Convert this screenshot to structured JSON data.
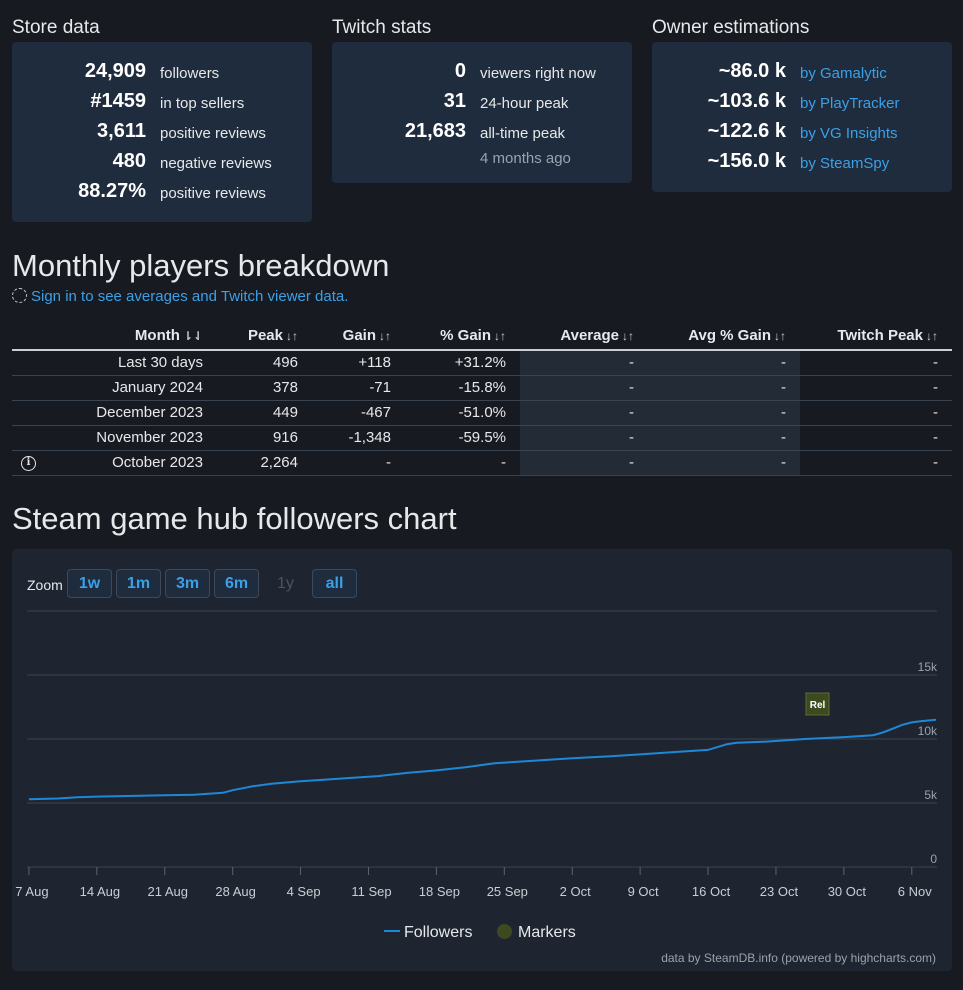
{
  "store": {
    "title": "Store data",
    "rows": [
      {
        "value": "24,909",
        "label": "followers"
      },
      {
        "value": "#1459",
        "label": "in top sellers"
      },
      {
        "value": "3,611",
        "label": "positive reviews"
      },
      {
        "value": "480",
        "label": "negative reviews"
      },
      {
        "value": "88.27%",
        "label": "positive reviews"
      }
    ]
  },
  "twitch": {
    "title": "Twitch stats",
    "rows": [
      {
        "value": "0",
        "label": "viewers right now"
      },
      {
        "value": "31",
        "label": "24-hour peak"
      },
      {
        "value": "21,683",
        "label": "all-time peak"
      }
    ],
    "alltime_when": "4 months ago"
  },
  "owners": {
    "title": "Owner estimations",
    "rows": [
      {
        "value": "~86.0 k",
        "label": "by Gamalytic"
      },
      {
        "value": "~103.6 k",
        "label": "by PlayTracker"
      },
      {
        "value": "~122.6 k",
        "label": "by VG Insights"
      },
      {
        "value": "~156.0 k",
        "label": "by SteamSpy"
      }
    ]
  },
  "monthly": {
    "title": "Monthly players breakdown",
    "signin_text": "Sign in to see averages and Twitch viewer data.",
    "columns": [
      "Month",
      "Peak",
      "Gain",
      "% Gain",
      "Average",
      "Avg % Gain",
      "Twitch Peak"
    ],
    "sort_icons": {
      "active": "⇂⇃",
      "inactive": "↓↑"
    },
    "rows": [
      {
        "month": "Last 30 days",
        "peak": "496",
        "gain": "+118",
        "pct": "+31.2%",
        "avg": "-",
        "avgpct": "-",
        "twitch": "-"
      },
      {
        "month": "January 2024",
        "peak": "378",
        "gain": "-71",
        "pct": "-15.8%",
        "avg": "-",
        "avgpct": "-",
        "twitch": "-"
      },
      {
        "month": "December 2023",
        "peak": "449",
        "gain": "-467",
        "pct": "-51.0%",
        "avg": "-",
        "avgpct": "-",
        "twitch": "-"
      },
      {
        "month": "November 2023",
        "peak": "916",
        "gain": "-1,348",
        "pct": "-59.5%",
        "avg": "-",
        "avgpct": "-",
        "twitch": "-"
      },
      {
        "month": "October 2023",
        "peak": "2,264",
        "gain": "-",
        "pct": "-",
        "avg": "-",
        "avgpct": "-",
        "twitch": "-"
      }
    ]
  },
  "followers_chart": {
    "title": "Steam game hub followers chart",
    "zoom_label": "Zoom",
    "zoom_buttons": [
      "1w",
      "1m",
      "3m",
      "6m",
      "1y",
      "all"
    ],
    "legend": {
      "followers": "Followers",
      "markers": "Markers"
    },
    "credits": "data by SteamDB.info (powered by highcharts.com)",
    "marker_label": "Rel"
  },
  "chart_data": {
    "type": "line",
    "x_tick_labels": [
      "7 Aug",
      "14 Aug",
      "21 Aug",
      "28 Aug",
      "4 Sep",
      "11 Sep",
      "18 Sep",
      "25 Sep",
      "2 Oct",
      "9 Oct",
      "16 Oct",
      "23 Oct",
      "30 Oct",
      "6 Nov"
    ],
    "y_tick_labels": [
      "0",
      "5k",
      "10k",
      "15k"
    ],
    "ylim": [
      0,
      20000
    ],
    "xlim_days": [
      -0.2,
      93.6
    ],
    "series": [
      {
        "name": "Followers",
        "color": "#1e88d8",
        "x_days": [
          0,
          3,
          5,
          7,
          10,
          14,
          17,
          20,
          21,
          22,
          23,
          25,
          28,
          30,
          33,
          36,
          39,
          42,
          45,
          48,
          51,
          53,
          56,
          60,
          63,
          67,
          70,
          72,
          73,
          76,
          80,
          84,
          87,
          88,
          89,
          90,
          91,
          92,
          93.5
        ],
        "values": [
          5300,
          5350,
          5450,
          5500,
          5550,
          5600,
          5650,
          5800,
          6000,
          6150,
          6300,
          6500,
          6700,
          6800,
          6950,
          7100,
          7350,
          7550,
          7800,
          8100,
          8250,
          8350,
          8500,
          8650,
          8800,
          9000,
          9150,
          9600,
          9700,
          9800,
          10000,
          10150,
          10300,
          10500,
          10800,
          11100,
          11300,
          11400,
          11500
        ]
      }
    ],
    "markers": [
      {
        "label": "Rel",
        "x_day": 80.2
      }
    ],
    "grid": true,
    "legend_position": "bottom-center"
  },
  "colors": {
    "background": "#171a21",
    "card": "#1f2c3d",
    "link": "#3aa0e8",
    "positive": "#7cc143",
    "negative": "#e5534b",
    "line": "#1e88d8",
    "marker": "#3d4a1f"
  }
}
